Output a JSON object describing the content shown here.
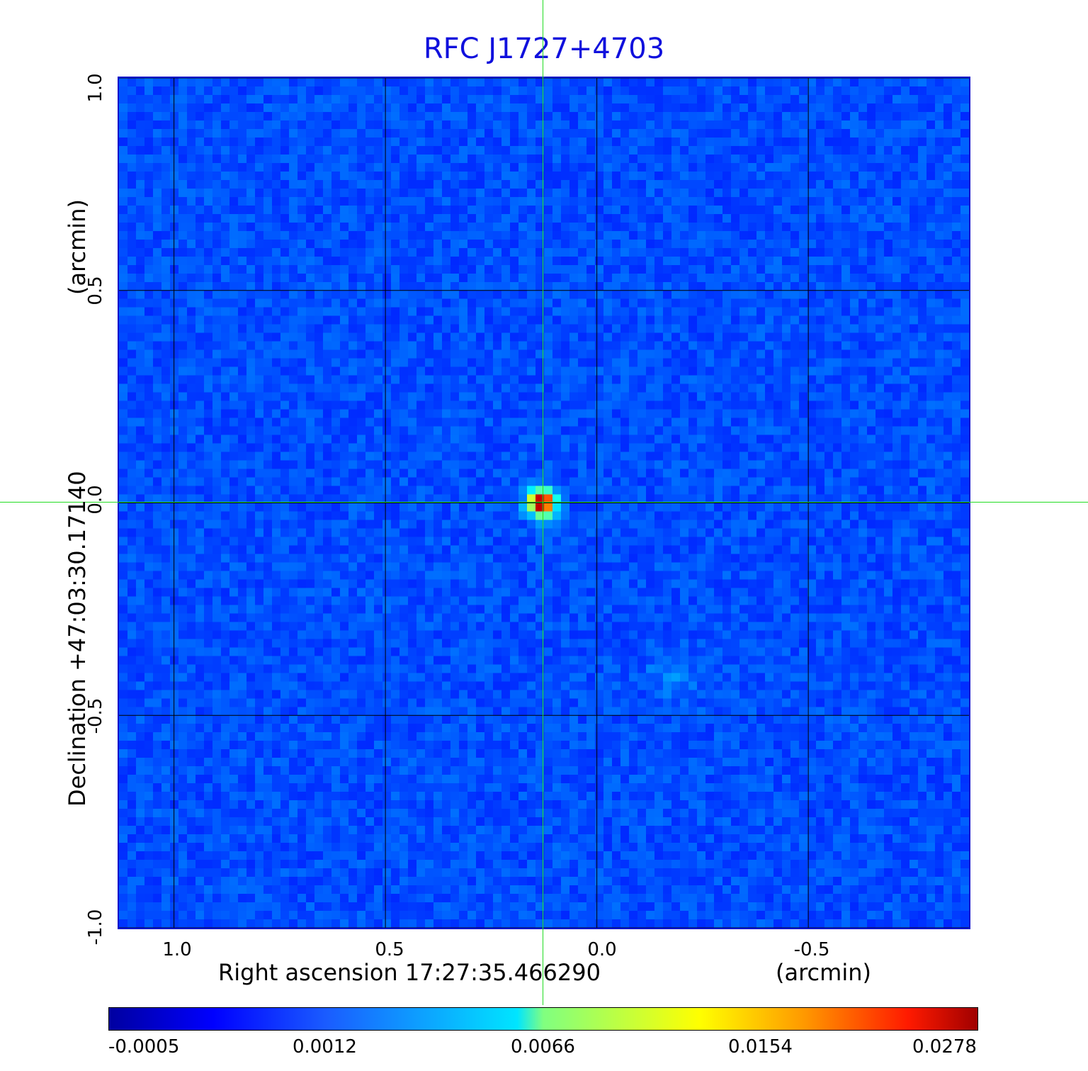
{
  "chart_data": {
    "type": "heatmap",
    "title": "RFC J1727+4703",
    "xlabel": "Right ascension  17:27:35.466290",
    "xunit": "(arcmin)",
    "ylabel": "Declination  +47:03:30.17140",
    "yunit": "(arcmin)",
    "x_ticks": [
      "1.0",
      "0.5",
      "0.0",
      "-0.5"
    ],
    "y_ticks": [
      "1.0",
      "0.5",
      "0.0",
      "-0.5",
      "-1.0"
    ],
    "x_tick_values": [
      1.0,
      0.5,
      0.0,
      -0.5
    ],
    "y_tick_values": [
      1.0,
      0.5,
      0.0,
      -0.5,
      -1.0
    ],
    "xlim": [
      1.13,
      -0.88
    ],
    "ylim": [
      -1.0,
      1.0
    ],
    "grid": true,
    "colormap": "jet",
    "colorbar_ticks": [
      "-0.0005",
      "0.0012",
      "0.0066",
      "0.0154",
      "0.0278"
    ],
    "colorbar_range": [
      -0.0005,
      0.0278
    ],
    "source_peak": {
      "x": 0.13,
      "y": 0.0,
      "value": 0.0278
    }
  },
  "colors": {
    "title": "#1010dd",
    "crosshair": "#22dd22",
    "frame": "#1010cc"
  }
}
